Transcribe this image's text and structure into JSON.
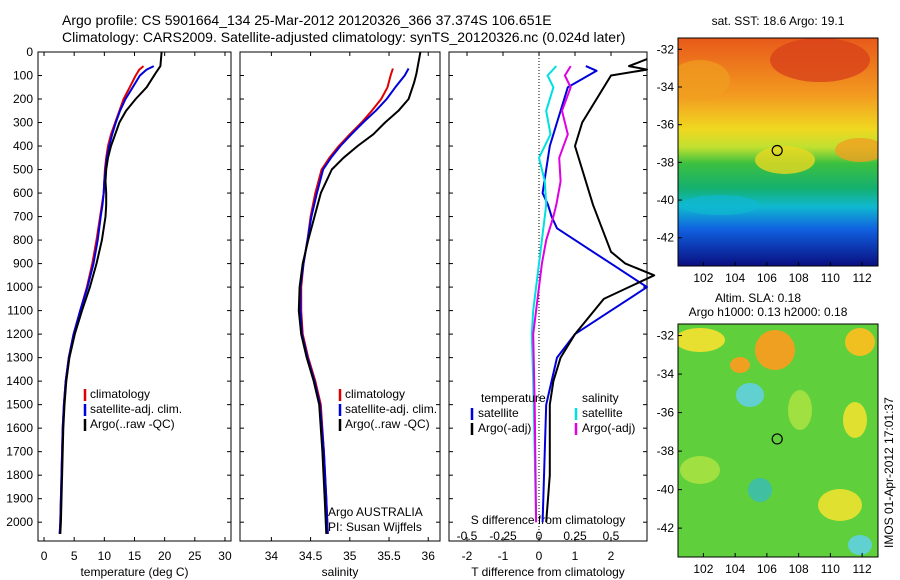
{
  "header": {
    "line1": "Argo profile: CS 5901664_134 25-Mar-2012 20120326_366 37.374S 106.651E",
    "line2": "Climatology: CARS2009. Satellite-adjusted climatology: synTS_20120326.nc (0.024d later)"
  },
  "side_stamp": "IMOS 01-Apr-2012 17:01:37",
  "colors": {
    "clim": "#e00000",
    "sat": "#0000dd",
    "argo": "#000000",
    "sat_s": "#00e0e0",
    "argo_s": "#e000e0",
    "marker": "#000000"
  },
  "chart_data": [
    {
      "type": "line",
      "id": "temperature",
      "xlabel": "temperature (deg C)",
      "xlim": [
        -1,
        31
      ],
      "xticks": [
        0,
        5,
        10,
        15,
        20,
        25,
        30
      ],
      "ylim": [
        0,
        2080
      ],
      "yticks": [
        0,
        100,
        200,
        300,
        400,
        500,
        600,
        700,
        800,
        900,
        1000,
        1100,
        1200,
        1300,
        1400,
        1500,
        1600,
        1700,
        1800,
        1900,
        2000
      ],
      "legend": [
        "climatology",
        "satellite-adj. clim.",
        "Argo(..raw -QC)"
      ],
      "series": [
        {
          "key": "clim",
          "x": [
            16.5,
            15.8,
            15.2,
            14.2,
            13.2,
            12.5,
            11.8,
            11.1,
            10.6,
            10.3,
            10.1,
            10.0,
            9.9,
            9.6,
            9.3,
            8.7,
            8.0,
            7.1,
            6.0,
            4.9,
            4.1,
            3.6,
            3.3,
            3.1,
            2.9,
            2.7,
            2.6
          ],
          "y": [
            60,
            75,
            100,
            150,
            200,
            250,
            300,
            350,
            400,
            450,
            500,
            550,
            600,
            650,
            700,
            800,
            900,
            1000,
            1100,
            1200,
            1300,
            1400,
            1500,
            1600,
            1800,
            2000,
            2050
          ]
        },
        {
          "key": "sat",
          "x": [
            18.2,
            17.0,
            15.9,
            14.7,
            13.5,
            12.6,
            11.9,
            11.3,
            10.8,
            10.4,
            10.2,
            10.0,
            9.9,
            9.7,
            9.4,
            8.9,
            8.2,
            7.2,
            6.0,
            4.9,
            4.1,
            3.6,
            3.3,
            3.1,
            2.9,
            2.7,
            2.6
          ],
          "y": [
            60,
            75,
            100,
            150,
            200,
            250,
            300,
            350,
            400,
            450,
            500,
            550,
            600,
            650,
            700,
            800,
            900,
            1000,
            1100,
            1200,
            1300,
            1400,
            1500,
            1600,
            1800,
            2000,
            2050
          ]
        },
        {
          "key": "argo",
          "x": [
            19.5,
            19.3,
            18.5,
            17.0,
            15.2,
            13.6,
            12.5,
            11.8,
            11.1,
            10.6,
            10.3,
            10.2,
            10.3,
            10.3,
            10.2,
            9.6,
            8.7,
            7.6,
            6.3,
            5.1,
            4.2,
            3.7,
            3.4,
            3.2,
            3.0,
            2.8,
            2.7
          ],
          "y": [
            0,
            60,
            90,
            150,
            200,
            250,
            300,
            350,
            400,
            450,
            500,
            550,
            600,
            650,
            700,
            800,
            900,
            1000,
            1100,
            1200,
            1300,
            1400,
            1500,
            1600,
            1800,
            2000,
            2050
          ]
        }
      ]
    },
    {
      "type": "line",
      "id": "salinity",
      "xlabel": "salinity",
      "xlim": [
        33.6,
        36.15
      ],
      "xticks": [
        34,
        34.5,
        35,
        35.5,
        36
      ],
      "ylim": [
        0,
        2080
      ],
      "legend": [
        "climatology",
        "satellite-adj. clim.",
        "Argo(..raw -QC)"
      ],
      "annotations": [
        "Argo AUSTRALIA",
        "PI: Susan Wijffels"
      ],
      "series": [
        {
          "key": "clim",
          "x": [
            35.55,
            35.52,
            35.48,
            35.4,
            35.28,
            35.15,
            35.0,
            34.86,
            34.74,
            34.64,
            34.56,
            34.5,
            34.46,
            34.41,
            34.38,
            34.38,
            34.4,
            34.47,
            34.56,
            34.63,
            34.67,
            34.7,
            34.72
          ],
          "y": [
            70,
            100,
            150,
            200,
            250,
            300,
            350,
            400,
            450,
            500,
            600,
            700,
            800,
            900,
            1000,
            1100,
            1200,
            1300,
            1400,
            1500,
            1700,
            1900,
            2050
          ]
        },
        {
          "key": "sat",
          "x": [
            35.75,
            35.7,
            35.58,
            35.47,
            35.33,
            35.17,
            35.02,
            34.88,
            34.76,
            34.66,
            34.58,
            34.51,
            34.46,
            34.41,
            34.37,
            34.37,
            34.39,
            34.46,
            34.55,
            34.62,
            34.67,
            34.7,
            34.72
          ],
          "y": [
            70,
            100,
            150,
            200,
            250,
            300,
            350,
            400,
            450,
            500,
            600,
            700,
            800,
            900,
            1000,
            1100,
            1200,
            1300,
            1400,
            1500,
            1700,
            1900,
            2050
          ]
        },
        {
          "key": "argo",
          "x": [
            35.9,
            35.85,
            35.82,
            35.75,
            35.62,
            35.45,
            35.3,
            35.1,
            34.92,
            34.77,
            34.63,
            34.55,
            34.47,
            34.4,
            34.36,
            34.35,
            34.38,
            34.45,
            34.54,
            34.61,
            34.65,
            34.68,
            34.7
          ],
          "y": [
            0,
            90,
            130,
            200,
            250,
            300,
            350,
            400,
            450,
            500,
            600,
            700,
            800,
            900,
            1000,
            1100,
            1200,
            1300,
            1400,
            1500,
            1700,
            1900,
            2050
          ]
        }
      ]
    },
    {
      "type": "line",
      "id": "difference",
      "xlabel": "T difference from climatology",
      "xlabel_top": "S difference from climatology",
      "xlim": [
        -2.5,
        3.0
      ],
      "xticks": [
        -2,
        -1,
        0,
        1,
        2
      ],
      "xtick_labels": [
        "-2",
        "-1",
        "0",
        "1",
        "2"
      ],
      "xticks_s": [
        -0.5,
        -0.25,
        0,
        0.25,
        0.5
      ],
      "xtick_labels_s": [
        "-0.5",
        "-0.25",
        "0",
        "0.25",
        "0.5"
      ],
      "ylim": [
        0,
        2080
      ],
      "legend_titles": [
        "temperature",
        "salinity"
      ],
      "legend_t": [
        "satellite",
        "Argo(-adj)"
      ],
      "legend_s": [
        "satellite",
        "Argo(-adj)"
      ],
      "series": [
        {
          "key": "sat",
          "x": [
            1.3,
            1.6,
            0.8,
            0.5,
            0.3,
            0.2,
            0.1,
            0.25,
            0.35,
            0.5,
            1.0,
            2.0,
            3.0,
            2.0,
            1.0,
            0.5,
            0.2,
            0.1
          ],
          "y": [
            60,
            80,
            150,
            300,
            400,
            500,
            600,
            650,
            700,
            750,
            800,
            900,
            1000,
            1100,
            1200,
            1300,
            1500,
            2000
          ]
        },
        {
          "key": "argo",
          "x": [
            3.0,
            2.5,
            3.0,
            2.0,
            1.6,
            1.2,
            1.0,
            1.2,
            1.5,
            2.0,
            2.4,
            3.2,
            1.8,
            1.0,
            0.6,
            0.4,
            0.3,
            0.3,
            0.2
          ],
          "y": [
            30,
            60,
            75,
            100,
            200,
            300,
            400,
            500,
            650,
            850,
            900,
            950,
            1050,
            1200,
            1300,
            1400,
            1500,
            1800,
            2000
          ]
        },
        {
          "key": "sat_s",
          "x": [
            0.12,
            0.06,
            0.1,
            0.05,
            0.08,
            0.0,
            0.04,
            0.05,
            0.04,
            0.02,
            0.0,
            -0.02,
            -0.04,
            -0.05,
            -0.04,
            -0.03,
            -0.02
          ],
          "y": [
            60,
            100,
            150,
            250,
            350,
            450,
            550,
            650,
            700,
            800,
            900,
            1000,
            1100,
            1200,
            1400,
            1700,
            2000
          ]
        },
        {
          "key": "argo_s",
          "x": [
            0.22,
            0.18,
            0.22,
            0.16,
            0.2,
            0.14,
            0.15,
            0.12,
            0.1,
            0.05,
            0.02,
            0.0,
            -0.02,
            -0.04,
            -0.03,
            -0.02
          ],
          "y": [
            60,
            100,
            150,
            250,
            350,
            450,
            550,
            650,
            700,
            800,
            900,
            1000,
            1100,
            1200,
            1500,
            2000
          ]
        }
      ]
    },
    {
      "type": "heatmap",
      "id": "sst",
      "title": "sat. SST: 18.6 Argo: 19.1",
      "xlim": [
        100.4,
        113
      ],
      "ylim": [
        -43.5,
        -31.4
      ],
      "xticks": [
        102,
        104,
        106,
        108,
        110,
        112
      ],
      "yticks": [
        -32,
        -34,
        -36,
        -38,
        -40,
        -42
      ],
      "marker": {
        "lon": 106.65,
        "lat": -37.37
      }
    },
    {
      "type": "heatmap",
      "id": "sla",
      "title": "Altim. SLA: 0.18",
      "subtitle": "Argo h1000: 0.13 h2000: 0.18",
      "xlim": [
        100.4,
        113
      ],
      "ylim": [
        -43.5,
        -31.4
      ],
      "xticks": [
        102,
        104,
        106,
        108,
        110,
        112
      ],
      "yticks": [
        -32,
        -34,
        -36,
        -38,
        -40,
        -42
      ],
      "marker": {
        "lon": 106.65,
        "lat": -37.37
      }
    }
  ]
}
